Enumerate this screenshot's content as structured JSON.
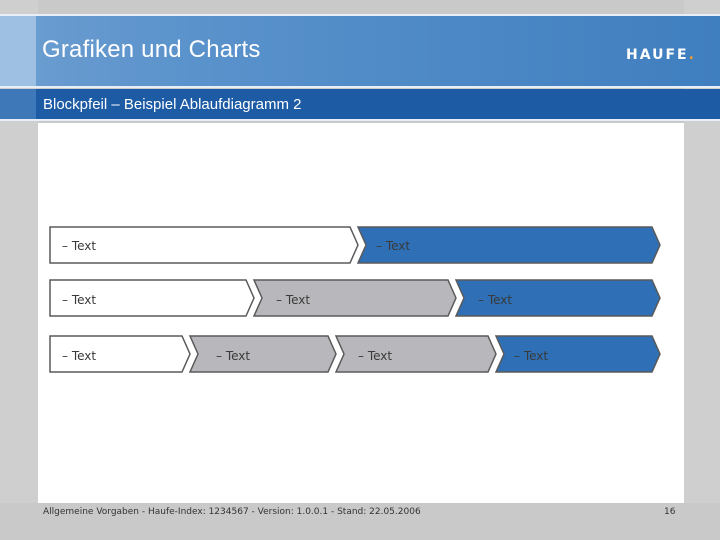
{
  "header": {
    "title": "Grafiken und Charts",
    "logo_text": "HAUFE",
    "logo_dot": "."
  },
  "subheader": {
    "title": "Blockpfeil – Beispiel Ablaufdiagramm 2"
  },
  "diagram": {
    "colors": {
      "white": "#ffffff",
      "gray": "#b8b8bc",
      "blue": "#2f6fb6",
      "border": "#5a5a5a"
    },
    "row1": [
      {
        "label": "– Text",
        "fill": "white"
      },
      {
        "label": "– Text",
        "fill": "blue"
      }
    ],
    "row2": [
      {
        "label": "– Text",
        "fill": "white"
      },
      {
        "label": "– Text",
        "fill": "gray"
      },
      {
        "label": "– Text",
        "fill": "blue"
      }
    ],
    "row3": [
      {
        "label": "– Text",
        "fill": "white"
      },
      {
        "label": "– Text",
        "fill": "gray"
      },
      {
        "label": "– Text",
        "fill": "gray"
      },
      {
        "label": "– Text",
        "fill": "blue"
      }
    ]
  },
  "footer": {
    "text": "Allgemeine Vorgaben - Haufe-Index: 1234567 - Version: 1.0.0.1 - Stand: 22.05.2006",
    "page": "16"
  }
}
